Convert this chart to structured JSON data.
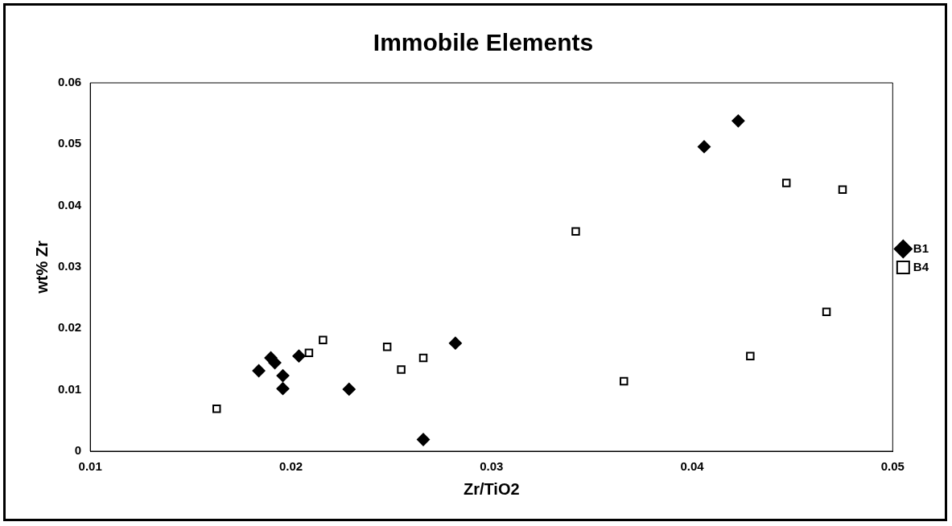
{
  "chart_data": {
    "type": "scatter",
    "title": "Immobile Elements",
    "xlabel": "Zr/TiO2",
    "ylabel": "wt% Zr",
    "xlim": [
      0.01,
      0.05
    ],
    "xticks": [
      0.01,
      0.02,
      0.03,
      0.04,
      0.05
    ],
    "ylim": [
      0,
      0.06
    ],
    "yticks": [
      0,
      0.01,
      0.02,
      0.03,
      0.04,
      0.05,
      0.06
    ],
    "grid": false,
    "legend": "right",
    "series": [
      {
        "name": "B1",
        "color": "#000000",
        "marker": "diamond",
        "x": [
          0.0184,
          0.019,
          0.0192,
          0.0196,
          0.0196,
          0.0204,
          0.0229,
          0.0266,
          0.0282,
          0.0406,
          0.0423
        ],
        "values": [
          0.0131,
          0.0152,
          0.0144,
          0.0123,
          0.0102,
          0.0155,
          0.0101,
          0.0019,
          0.0176,
          0.0496,
          0.0538
        ]
      },
      {
        "name": "B4",
        "color": "#000000",
        "marker": "square",
        "x": [
          0.0163,
          0.0209,
          0.0216,
          0.0248,
          0.0255,
          0.0266,
          0.0342,
          0.0366,
          0.0429,
          0.0447,
          0.0467,
          0.0475
        ],
        "values": [
          0.0069,
          0.016,
          0.0181,
          0.017,
          0.0133,
          0.0152,
          0.0358,
          0.0114,
          0.0155,
          0.0437,
          0.0227,
          0.0426
        ]
      }
    ]
  }
}
